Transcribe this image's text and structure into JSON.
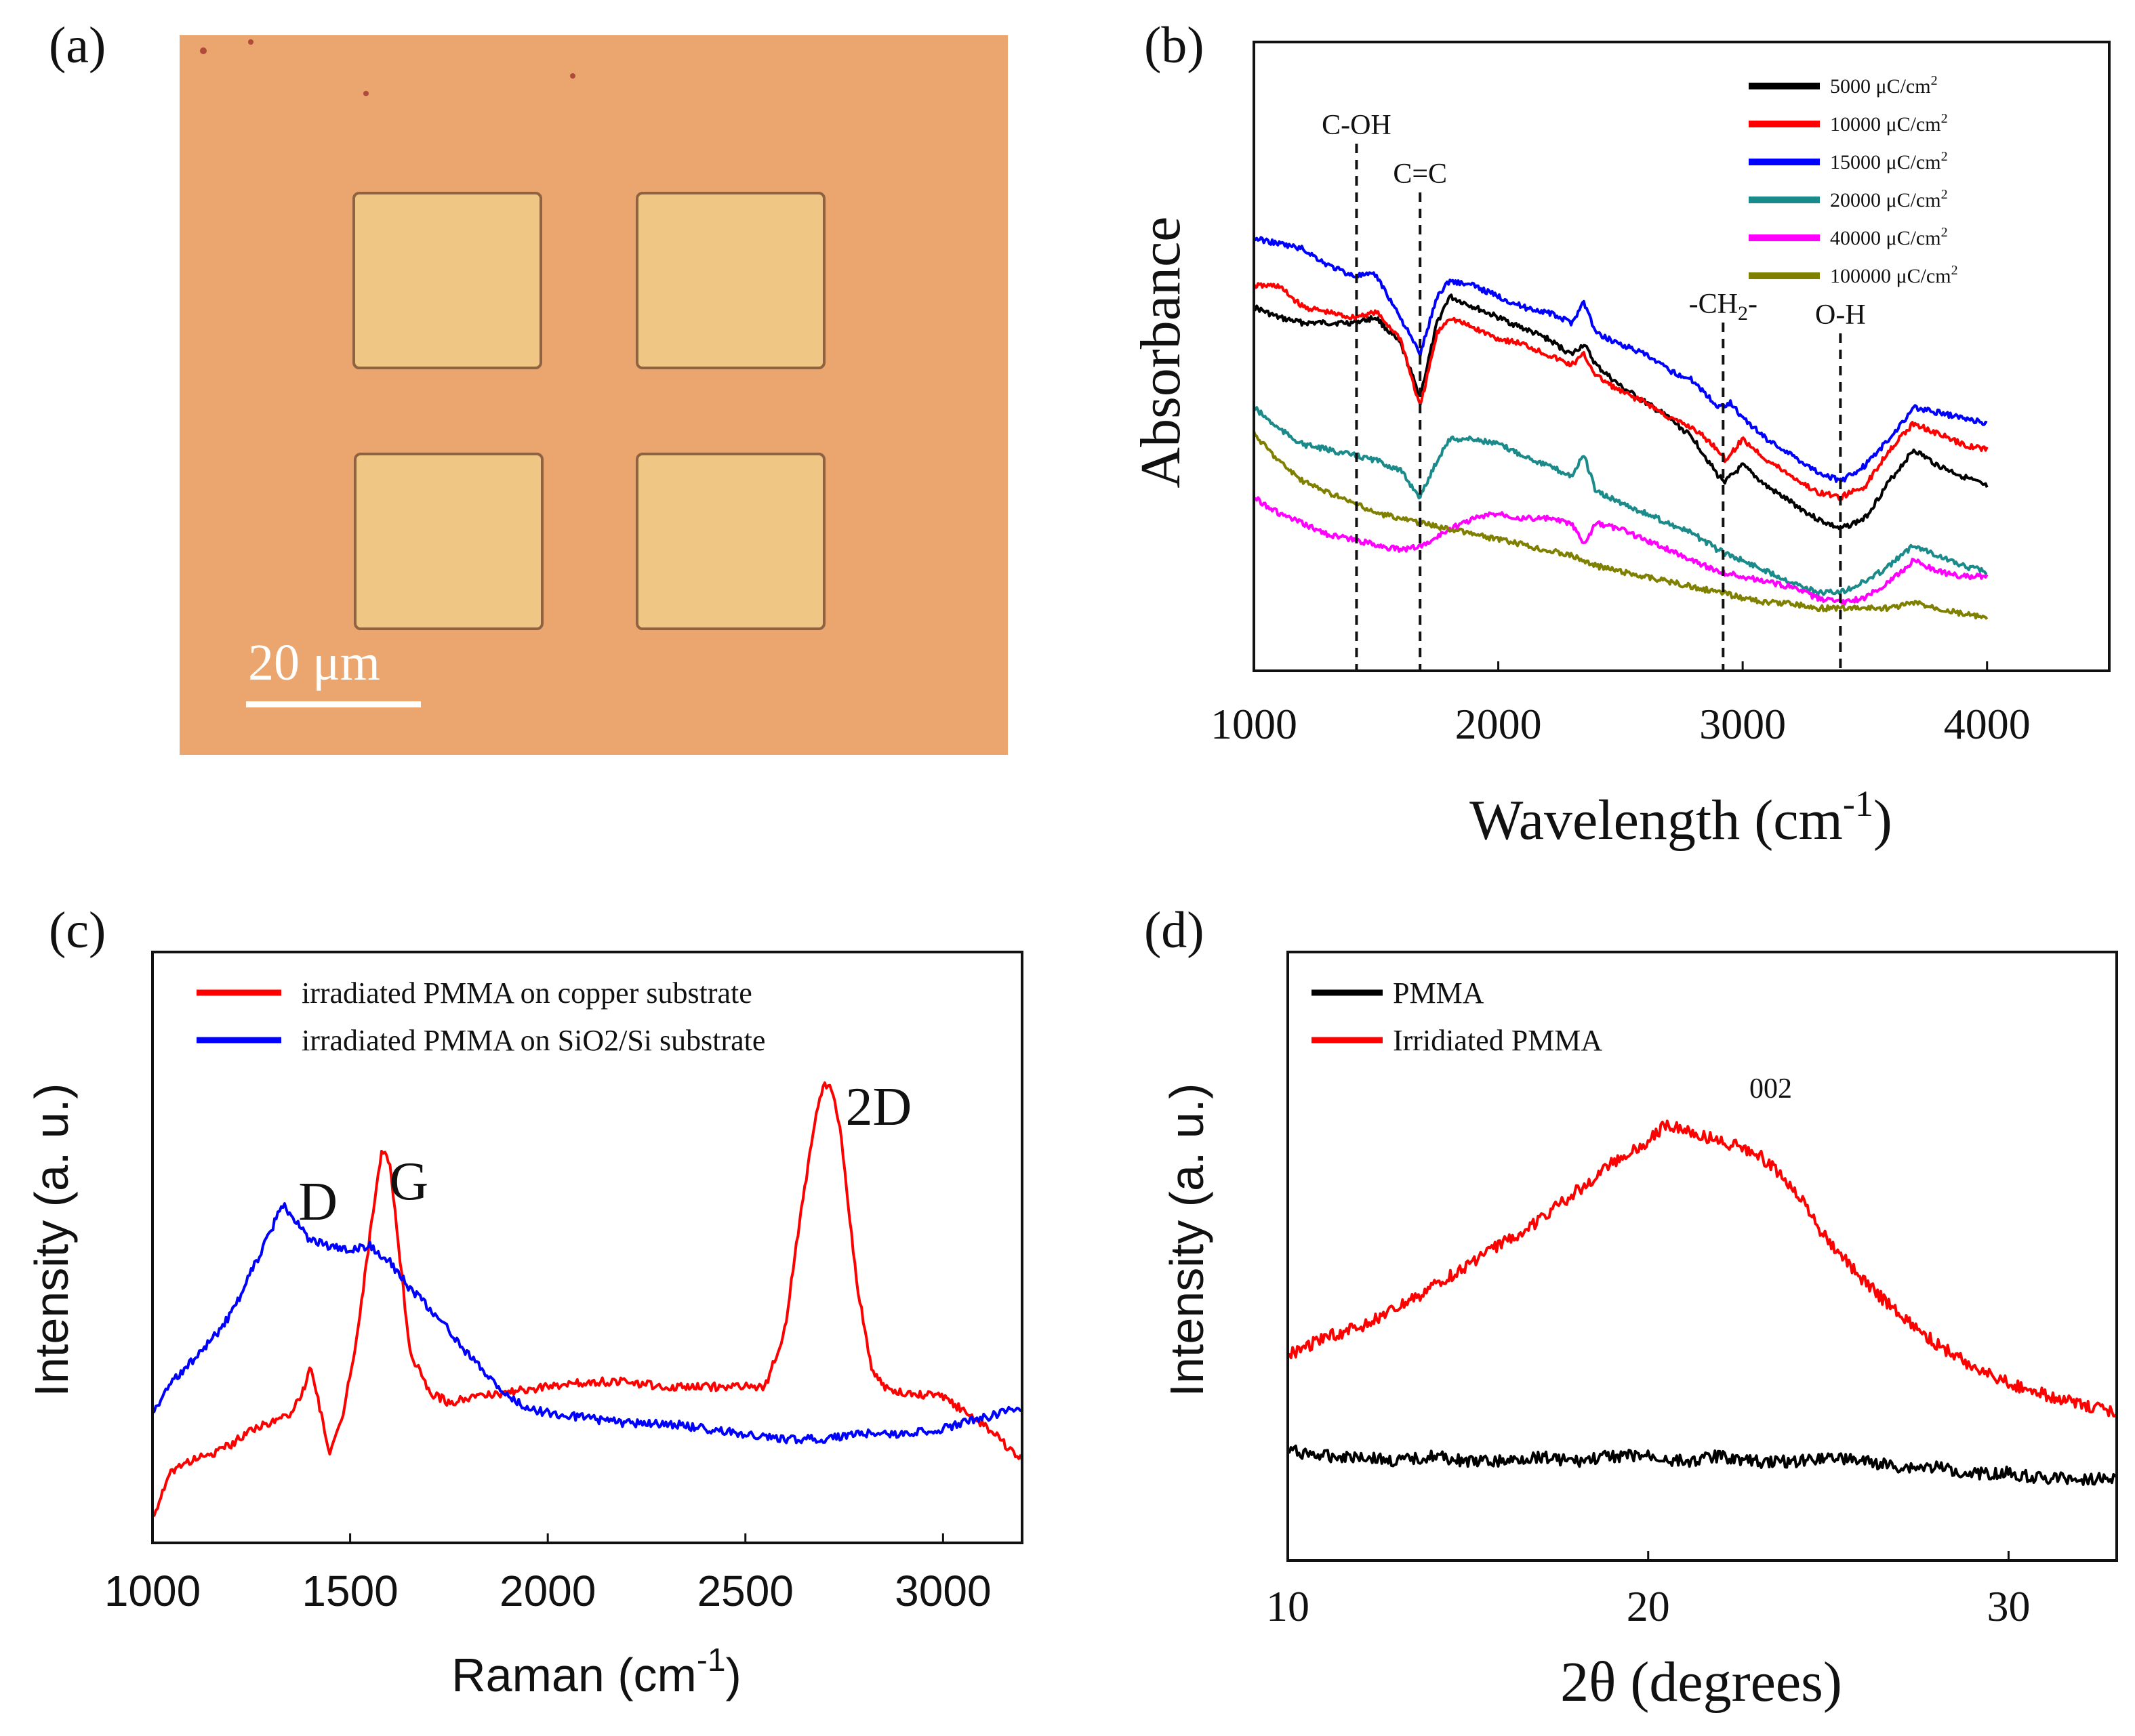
{
  "panels": {
    "a": {
      "label": "(a)",
      "scale_bar_text": "20 μm",
      "colors": {
        "background": "#eba66f",
        "square": "#efc684",
        "square_border": "#8f6242"
      }
    },
    "b": {
      "label": "(b)"
    },
    "c": {
      "label": "(c)"
    },
    "d": {
      "label": "(d)"
    }
  },
  "chart_data": [
    {
      "id": "b",
      "type": "line",
      "title": "",
      "xlabel": "Wavelength (cm",
      "xlabel_sup": "-1",
      "xlabel_close": ")",
      "ylabel": "Absorbance",
      "xlim": [
        1000,
        4500
      ],
      "ylim": [
        0,
        10
      ],
      "xticks": [
        1000,
        2000,
        3000,
        4000
      ],
      "tick_labels": [
        "1000",
        "2000",
        "3000",
        "4000"
      ],
      "legend_position": "top-right",
      "annotations": [
        {
          "text": "C-OH",
          "x": 1420
        },
        {
          "text": "C=C",
          "x": 1680
        },
        {
          "text": "-CH",
          "sub": "2",
          "after": "-",
          "x": 2920
        },
        {
          "text": "O-H",
          "x": 3400
        }
      ],
      "series": [
        {
          "name": "5000 μC/cm",
          "sup": "2",
          "color": "#000000",
          "x": [
            1000,
            1100,
            1200,
            1300,
            1400,
            1500,
            1600,
            1680,
            1750,
            1800,
            1900,
            2000,
            2100,
            2200,
            2300,
            2350,
            2400,
            2500,
            2600,
            2700,
            2800,
            2900,
            2930,
            3000,
            3100,
            3200,
            3300,
            3400,
            3500,
            3600,
            3700,
            3800,
            3900,
            4000
          ],
          "y": [
            6.5,
            6.3,
            6.2,
            6.2,
            6.2,
            6.3,
            5.8,
            4.8,
            6.2,
            6.7,
            6.5,
            6.3,
            6.1,
            5.9,
            5.6,
            5.8,
            5.4,
            5.0,
            4.7,
            4.4,
            4.0,
            3.3,
            3.2,
            3.5,
            3.1,
            2.8,
            2.5,
            2.3,
            2.5,
            3.2,
            3.8,
            3.5,
            3.3,
            3.1
          ]
        },
        {
          "name": "10000 μC/cm",
          "sup": "2",
          "color": "#ff0000",
          "x": [
            1000,
            1100,
            1200,
            1300,
            1400,
            1500,
            1600,
            1680,
            1750,
            1800,
            1900,
            2000,
            2100,
            2200,
            2300,
            2350,
            2400,
            2500,
            2600,
            2700,
            2800,
            2900,
            2930,
            3000,
            3100,
            3200,
            3300,
            3400,
            3500,
            3600,
            3700,
            3800,
            3900,
            4000
          ],
          "y": [
            6.9,
            6.9,
            6.5,
            6.4,
            6.3,
            6.4,
            5.9,
            4.6,
            6.0,
            6.3,
            6.1,
            5.9,
            5.8,
            5.6,
            5.4,
            5.6,
            5.2,
            4.9,
            4.7,
            4.4,
            4.2,
            3.8,
            3.6,
            4.0,
            3.6,
            3.3,
            3.0,
            2.9,
            3.1,
            3.8,
            4.3,
            4.1,
            3.9,
            3.8
          ]
        },
        {
          "name": "15000 μC/cm",
          "sup": "2",
          "color": "#0000ff",
          "x": [
            1000,
            1100,
            1200,
            1300,
            1400,
            1500,
            1600,
            1680,
            1750,
            1800,
            1900,
            2000,
            2100,
            2200,
            2300,
            2350,
            2400,
            2500,
            2600,
            2700,
            2800,
            2900,
            2950,
            3000,
            3100,
            3200,
            3300,
            3400,
            3500,
            3600,
            3700,
            3800,
            3900,
            4000
          ],
          "y": [
            7.8,
            7.7,
            7.6,
            7.3,
            7.1,
            7.1,
            6.3,
            5.6,
            6.7,
            7.0,
            6.9,
            6.7,
            6.5,
            6.4,
            6.2,
            6.6,
            6.0,
            5.8,
            5.6,
            5.3,
            5.1,
            4.6,
            4.7,
            4.4,
            4.0,
            3.7,
            3.4,
            3.2,
            3.5,
            4.0,
            4.6,
            4.5,
            4.4,
            4.3
          ]
        },
        {
          "name": "20000 μC/cm",
          "sup": "2",
          "color": "#1a8a8a",
          "x": [
            1000,
            1100,
            1200,
            1300,
            1400,
            1500,
            1600,
            1680,
            1750,
            1800,
            1900,
            2000,
            2100,
            2200,
            2300,
            2350,
            2400,
            2500,
            2600,
            2700,
            2800,
            2900,
            3000,
            3100,
            3200,
            3300,
            3400,
            3500,
            3600,
            3700,
            3800,
            3900,
            4000
          ],
          "y": [
            4.6,
            4.2,
            3.9,
            3.8,
            3.7,
            3.6,
            3.4,
            2.9,
            3.6,
            4.0,
            4.0,
            3.9,
            3.7,
            3.5,
            3.3,
            3.7,
            3.0,
            2.8,
            2.6,
            2.4,
            2.2,
            1.9,
            1.7,
            1.5,
            1.3,
            1.1,
            1.1,
            1.3,
            1.6,
            2.0,
            1.8,
            1.6,
            1.5
          ]
        },
        {
          "name": "40000 μC/cm",
          "sup": "2",
          "color": "#ff00ff",
          "x": [
            1000,
            1100,
            1200,
            1300,
            1400,
            1500,
            1600,
            1700,
            1800,
            1900,
            2000,
            2100,
            2200,
            2300,
            2350,
            2400,
            2500,
            2600,
            2700,
            2800,
            2900,
            3000,
            3100,
            3200,
            3300,
            3400,
            3500,
            3600,
            3700,
            3800,
            3900,
            4000
          ],
          "y": [
            2.9,
            2.6,
            2.4,
            2.2,
            2.1,
            2.0,
            1.9,
            2.0,
            2.3,
            2.5,
            2.6,
            2.5,
            2.5,
            2.4,
            2.0,
            2.4,
            2.3,
            2.1,
            1.9,
            1.7,
            1.5,
            1.4,
            1.3,
            1.2,
            1.0,
            0.9,
            1.0,
            1.3,
            1.7,
            1.5,
            1.4,
            1.4
          ]
        },
        {
          "name": "100000 μC/cm",
          "sup": "2",
          "color": "#808000",
          "x": [
            1000,
            1100,
            1200,
            1300,
            1400,
            1500,
            1600,
            1700,
            1800,
            1900,
            2000,
            2100,
            2200,
            2300,
            2350,
            2400,
            2500,
            2600,
            2700,
            2800,
            2900,
            3000,
            3100,
            3200,
            3300,
            3400,
            3500,
            3600,
            3700,
            3800,
            3900,
            4000
          ],
          "y": [
            4.1,
            3.6,
            3.2,
            3.0,
            2.8,
            2.6,
            2.5,
            2.4,
            2.3,
            2.2,
            2.1,
            2.0,
            1.9,
            1.8,
            1.7,
            1.6,
            1.5,
            1.4,
            1.3,
            1.2,
            1.1,
            1.0,
            0.9,
            0.9,
            0.8,
            0.8,
            0.8,
            0.8,
            0.9,
            0.8,
            0.7,
            0.6
          ]
        }
      ]
    },
    {
      "id": "c",
      "type": "line",
      "title": "",
      "xlabel": "Raman (cm",
      "xlabel_sup": "-1",
      "xlabel_close": ")",
      "ylabel": "Intensity (a. u.)",
      "xlim": [
        1000,
        3200
      ],
      "ylim": [
        0,
        10
      ],
      "xticks": [
        1000,
        1500,
        2000,
        2500,
        3000
      ],
      "tick_labels": [
        "1000",
        "1500",
        "2000",
        "2500",
        "3000"
      ],
      "legend_position": "top-left",
      "peak_labels": [
        {
          "text": "D",
          "x": 1350
        },
        {
          "text": "G",
          "x": 1580
        },
        {
          "text": "2D",
          "x": 2700
        }
      ],
      "series": [
        {
          "name": "irradiated PMMA on copper substrate",
          "color": "#ff0000",
          "x": [
            1000,
            1050,
            1100,
            1150,
            1200,
            1250,
            1300,
            1350,
            1380,
            1400,
            1420,
            1450,
            1480,
            1520,
            1560,
            1580,
            1600,
            1620,
            1650,
            1700,
            1750,
            1800,
            1900,
            2000,
            2100,
            2200,
            2300,
            2400,
            2500,
            2550,
            2600,
            2640,
            2680,
            2700,
            2720,
            2740,
            2780,
            2820,
            2850,
            2900,
            3000,
            3100,
            3200
          ],
          "y": [
            0.4,
            1.3,
            1.5,
            1.6,
            1.8,
            2.1,
            2.2,
            2.4,
            2.8,
            3.3,
            2.6,
            1.6,
            2.3,
            4.0,
            6.4,
            7.4,
            7.2,
            5.8,
            3.6,
            2.8,
            2.6,
            2.7,
            2.8,
            2.9,
            3.0,
            3.0,
            2.9,
            2.9,
            2.9,
            2.9,
            4.0,
            6.2,
            8.2,
            8.7,
            8.6,
            7.8,
            5.0,
            3.2,
            2.9,
            2.8,
            2.7,
            2.2,
            1.5
          ]
        },
        {
          "name": "irradiated PMMA on SiO2/Si substrate",
          "color": "#0000ff",
          "x": [
            1000,
            1050,
            1100,
            1150,
            1200,
            1250,
            1300,
            1330,
            1360,
            1400,
            1450,
            1500,
            1550,
            1600,
            1650,
            1700,
            1750,
            1800,
            1850,
            1900,
            1950,
            2000,
            2100,
            2200,
            2300,
            2400,
            2500,
            2600,
            2700,
            2800,
            2900,
            3000,
            3100,
            3200
          ],
          "y": [
            2.4,
            3.0,
            3.4,
            3.8,
            4.3,
            5.1,
            5.9,
            6.4,
            6.1,
            5.7,
            5.6,
            5.5,
            5.6,
            5.3,
            4.8,
            4.4,
            4.0,
            3.5,
            3.1,
            2.7,
            2.5,
            2.4,
            2.3,
            2.2,
            2.2,
            2.1,
            2.0,
            1.9,
            1.9,
            2.0,
            2.0,
            2.1,
            2.3,
            2.5
          ]
        }
      ]
    },
    {
      "id": "d",
      "type": "line",
      "title": "",
      "xlabel": "2θ (degrees)",
      "ylabel": "Intensity (a. u.)",
      "xlim": [
        10,
        33
      ],
      "ylim": [
        0,
        10
      ],
      "xticks": [
        10,
        20,
        30
      ],
      "tick_labels": [
        "10",
        "20",
        "30"
      ],
      "legend_position": "top-left",
      "annotations": [
        {
          "text": "002",
          "x": 23.4
        }
      ],
      "series": [
        {
          "name": "PMMA",
          "color": "#000000",
          "x": [
            10,
            11,
            12,
            13,
            14,
            15,
            16,
            17,
            18,
            19,
            20,
            21,
            22,
            23,
            24,
            25,
            26,
            27,
            28,
            29,
            30,
            31,
            32,
            33
          ],
          "y": [
            1.8,
            1.7,
            1.7,
            1.6,
            1.7,
            1.6,
            1.6,
            1.7,
            1.6,
            1.7,
            1.7,
            1.6,
            1.7,
            1.6,
            1.6,
            1.7,
            1.6,
            1.5,
            1.5,
            1.4,
            1.4,
            1.3,
            1.3,
            1.3
          ]
        },
        {
          "name": "Irridiated PMMA",
          "color": "#ff0000",
          "x": [
            10,
            11,
            12,
            13,
            14,
            15,
            16,
            17,
            18,
            19,
            20,
            20.5,
            21,
            21.5,
            22,
            23,
            24,
            25,
            26,
            27,
            28,
            29,
            30,
            31,
            32,
            33
          ],
          "y": [
            3.5,
            3.8,
            4.0,
            4.3,
            4.7,
            5.1,
            5.5,
            5.9,
            6.4,
            6.9,
            7.3,
            7.6,
            7.5,
            7.4,
            7.3,
            7.1,
            6.5,
            5.5,
            4.8,
            4.2,
            3.7,
            3.3,
            3.0,
            2.8,
            2.6,
            2.5
          ]
        }
      ]
    }
  ]
}
